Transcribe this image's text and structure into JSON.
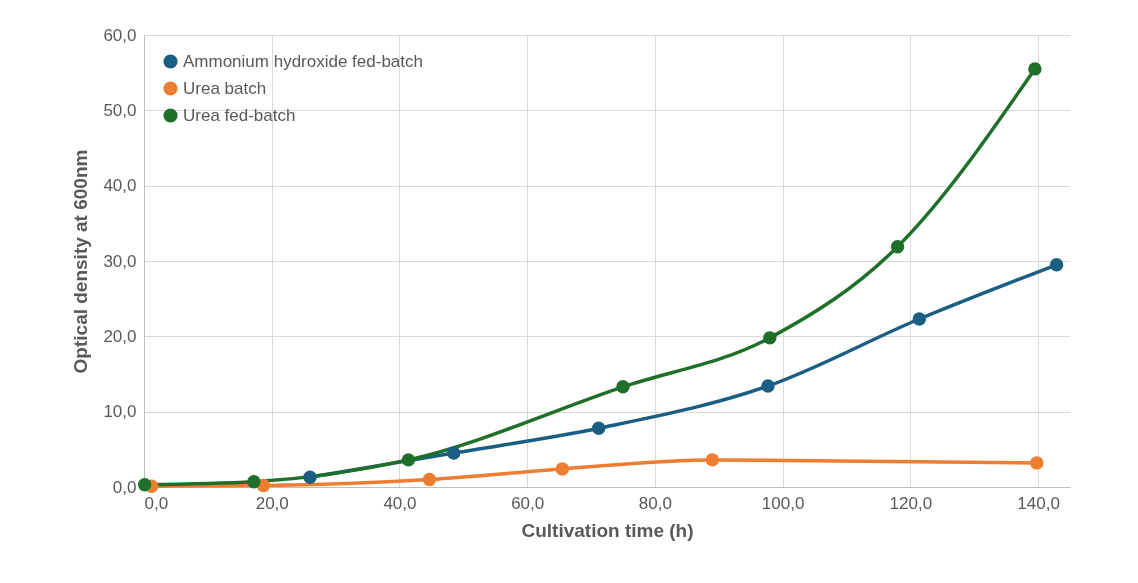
{
  "chart_data": {
    "type": "line",
    "xlabel": "Cultivation time (h)",
    "ylabel": "Optical density at 600nm",
    "xlim": [
      0,
      145
    ],
    "ylim": [
      0,
      60
    ],
    "xticks": [
      {
        "value": 0,
        "label": "0,0"
      },
      {
        "value": 20,
        "label": "20,0"
      },
      {
        "value": 40,
        "label": "40,0"
      },
      {
        "value": 60,
        "label": "60,0"
      },
      {
        "value": 80,
        "label": "80,0"
      },
      {
        "value": 100,
        "label": "100,0"
      },
      {
        "value": 120,
        "label": "120,0"
      },
      {
        "value": 140,
        "label": "140,0"
      }
    ],
    "yticks": [
      {
        "value": 0,
        "label": "0,0"
      },
      {
        "value": 10,
        "label": "10,0"
      },
      {
        "value": 20,
        "label": "20,0"
      },
      {
        "value": 30,
        "label": "30,0"
      },
      {
        "value": 40,
        "label": "40,0"
      },
      {
        "value": 50,
        "label": "50,0"
      },
      {
        "value": 60,
        "label": "60,0"
      }
    ],
    "grid": true,
    "legend": "top left",
    "marker": "circle",
    "line_style": "solid",
    "series": [
      {
        "name": "Ammonium hydroxide fed-batch",
        "color": "#1b5e84",
        "x": [
          26.0,
          48.5,
          71.2,
          97.7,
          121.4,
          142.9
        ],
        "values": [
          1.3,
          4.5,
          7.8,
          13.4,
          22.3,
          29.5
        ]
      },
      {
        "name": "Urea batch",
        "color": "#ed7d31",
        "x": [
          1.2,
          18.7,
          44.7,
          65.5,
          89.0,
          139.8
        ],
        "values": [
          0.1,
          0.2,
          1.0,
          2.4,
          3.6,
          3.2
        ]
      },
      {
        "name": "Urea fed-batch",
        "color": "#1e7028",
        "x": [
          0.1,
          17.2,
          41.4,
          75.0,
          98.0,
          118.0,
          139.5
        ],
        "values": [
          0.3,
          0.7,
          3.6,
          13.3,
          19.8,
          31.9,
          55.5
        ]
      }
    ]
  }
}
